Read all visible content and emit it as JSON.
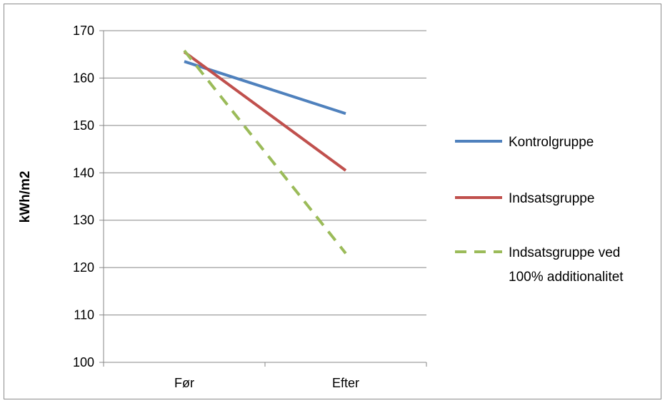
{
  "chart_data": {
    "type": "line",
    "title": "",
    "xlabel": "",
    "ylabel": "kWh/m2",
    "categories": [
      "Før",
      "Efter"
    ],
    "ylim": [
      100,
      170
    ],
    "yticks": [
      100,
      110,
      120,
      130,
      140,
      150,
      160,
      170
    ],
    "grid": "horizontal",
    "legend_position": "right",
    "series": [
      {
        "name": "Kontrolgruppe",
        "values": [
          163.5,
          152.5
        ],
        "color": "#4f81bd",
        "style": "solid"
      },
      {
        "name": "Indsatsgruppe",
        "values": [
          165.5,
          140.5
        ],
        "color": "#c0504d",
        "style": "solid"
      },
      {
        "name": "Indsatsgruppe ved 100% additionalitet",
        "legend_lines": [
          "Indsatsgruppe ved",
          "100% additionalitet"
        ],
        "values": [
          165.8,
          123.0
        ],
        "color": "#9bbb59",
        "style": "dashed"
      }
    ]
  }
}
